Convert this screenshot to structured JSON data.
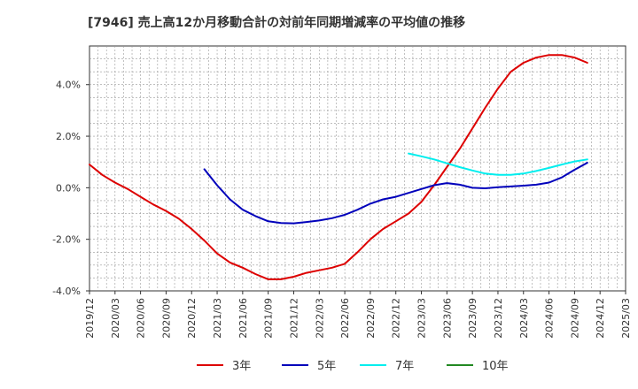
{
  "chart_data": {
    "type": "line",
    "title": "[7946]  売上高12か月移動合計の対前年同期増減率の平均値の推移",
    "xlabel": "",
    "ylabel": "",
    "ylim": [
      -4.0,
      5.5
    ],
    "yticks": [
      "4.0%",
      "2.0%",
      "0.0%",
      "-2.0%",
      "-4.0%"
    ],
    "ytick_values": [
      4.0,
      2.0,
      0.0,
      -2.0,
      -4.0
    ],
    "x_labels": [
      "2019/12",
      "2020/03",
      "2020/06",
      "2020/09",
      "2020/12",
      "2021/03",
      "2021/06",
      "2021/09",
      "2021/12",
      "2022/03",
      "2022/06",
      "2022/09",
      "2022/12",
      "2023/03",
      "2023/06",
      "2023/09",
      "2023/12",
      "2024/03",
      "2024/06",
      "2024/09",
      "2024/12",
      "2025/03"
    ],
    "grid": true,
    "legend_position": "bottom",
    "series": [
      {
        "name": "3年",
        "color": "#dd0000",
        "values": [
          [
            0,
            0.9
          ],
          [
            0.5,
            0.5
          ],
          [
            1,
            0.2
          ],
          [
            1.5,
            -0.05
          ],
          [
            2,
            -0.35
          ],
          [
            2.5,
            -0.65
          ],
          [
            3,
            -0.9
          ],
          [
            3.5,
            -1.2
          ],
          [
            4,
            -1.6
          ],
          [
            4.5,
            -2.05
          ],
          [
            5,
            -2.55
          ],
          [
            5.5,
            -2.9
          ],
          [
            6,
            -3.1
          ],
          [
            6.5,
            -3.35
          ],
          [
            7,
            -3.55
          ],
          [
            7.5,
            -3.55
          ],
          [
            8,
            -3.45
          ],
          [
            8.5,
            -3.3
          ],
          [
            9,
            -3.2
          ],
          [
            9.5,
            -3.1
          ],
          [
            10,
            -2.95
          ],
          [
            10.5,
            -2.5
          ],
          [
            11,
            -2.0
          ],
          [
            11.5,
            -1.6
          ],
          [
            12,
            -1.3
          ],
          [
            12.5,
            -1.0
          ],
          [
            13,
            -0.55
          ],
          [
            13.5,
            0.1
          ],
          [
            14,
            0.8
          ],
          [
            14.5,
            1.5
          ],
          [
            15,
            2.3
          ],
          [
            15.5,
            3.1
          ],
          [
            16,
            3.85
          ],
          [
            16.5,
            4.5
          ],
          [
            17,
            4.85
          ],
          [
            17.5,
            5.05
          ],
          [
            18,
            5.15
          ],
          [
            18.5,
            5.15
          ],
          [
            19,
            5.05
          ],
          [
            19.5,
            4.85
          ]
        ]
      },
      {
        "name": "5年",
        "color": "#0000bb",
        "values": [
          [
            4.5,
            0.72
          ],
          [
            5,
            0.1
          ],
          [
            5.5,
            -0.45
          ],
          [
            6,
            -0.85
          ],
          [
            6.5,
            -1.1
          ],
          [
            7,
            -1.3
          ],
          [
            7.5,
            -1.37
          ],
          [
            8,
            -1.38
          ],
          [
            8.5,
            -1.33
          ],
          [
            9,
            -1.27
          ],
          [
            9.5,
            -1.18
          ],
          [
            10,
            -1.05
          ],
          [
            10.5,
            -0.85
          ],
          [
            11,
            -0.62
          ],
          [
            11.5,
            -0.45
          ],
          [
            12,
            -0.35
          ],
          [
            12.5,
            -0.2
          ],
          [
            13,
            -0.05
          ],
          [
            13.5,
            0.1
          ],
          [
            14,
            0.18
          ],
          [
            14.5,
            0.12
          ],
          [
            15,
            0.0
          ],
          [
            15.5,
            -0.02
          ],
          [
            16,
            0.02
          ],
          [
            16.5,
            0.05
          ],
          [
            17,
            0.08
          ],
          [
            17.5,
            0.12
          ],
          [
            18,
            0.2
          ],
          [
            18.5,
            0.4
          ],
          [
            19,
            0.7
          ],
          [
            19.5,
            0.97
          ]
        ]
      },
      {
        "name": "7年",
        "color": "#00eeee",
        "values": [
          [
            12.5,
            1.33
          ],
          [
            13,
            1.22
          ],
          [
            13.5,
            1.1
          ],
          [
            14,
            0.95
          ],
          [
            14.5,
            0.8
          ],
          [
            15,
            0.67
          ],
          [
            15.5,
            0.55
          ],
          [
            16,
            0.5
          ],
          [
            16.5,
            0.5
          ],
          [
            17,
            0.55
          ],
          [
            17.5,
            0.65
          ],
          [
            18,
            0.77
          ],
          [
            18.5,
            0.9
          ],
          [
            19,
            1.02
          ],
          [
            19.5,
            1.1
          ]
        ]
      },
      {
        "name": "10年",
        "color": "#228822",
        "values": []
      }
    ]
  }
}
